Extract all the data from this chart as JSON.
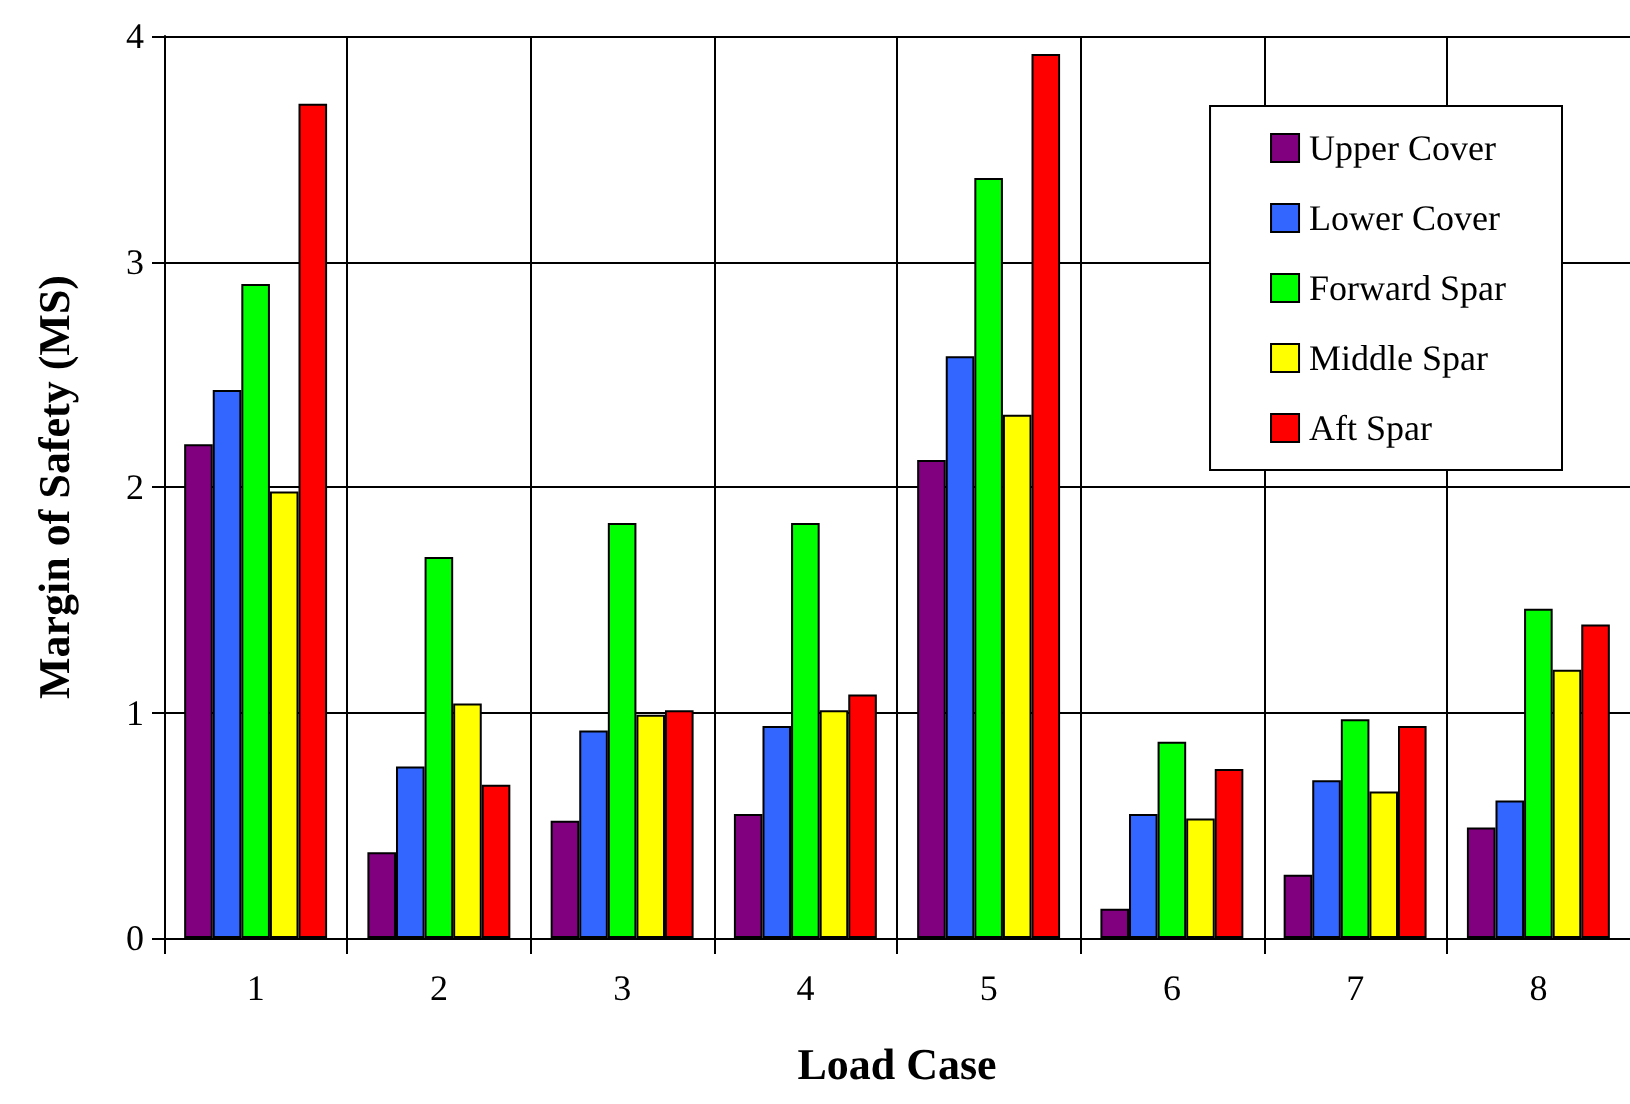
{
  "chart_data": {
    "type": "bar",
    "xlabel": "Load Case",
    "ylabel": "Margin of Safety (MS)",
    "categories": [
      "1",
      "2",
      "3",
      "4",
      "5",
      "6",
      "7",
      "8"
    ],
    "series": [
      {
        "name": "Upper Cover",
        "color": "#800080",
        "values": [
          2.19,
          0.38,
          0.52,
          0.55,
          2.12,
          0.13,
          0.28,
          0.49
        ]
      },
      {
        "name": "Lower Cover",
        "color": "#3366ff",
        "values": [
          2.43,
          0.76,
          0.92,
          0.94,
          2.58,
          0.55,
          0.7,
          0.61
        ]
      },
      {
        "name": "Forward Spar",
        "color": "#00ff00",
        "values": [
          2.9,
          1.69,
          1.84,
          1.84,
          3.37,
          0.87,
          0.97,
          1.46
        ]
      },
      {
        "name": "Middle Spar",
        "color": "#ffff00",
        "values": [
          1.98,
          1.04,
          0.99,
          1.01,
          2.32,
          0.53,
          0.65,
          1.19
        ]
      },
      {
        "name": "Aft Spar",
        "color": "#ff0000",
        "values": [
          3.7,
          0.68,
          1.01,
          1.08,
          3.92,
          0.75,
          0.94,
          1.39
        ]
      }
    ],
    "ylim": [
      0,
      4
    ],
    "yticks": [
      0,
      1,
      2,
      3,
      4
    ],
    "grid": true,
    "legend": "top right"
  }
}
